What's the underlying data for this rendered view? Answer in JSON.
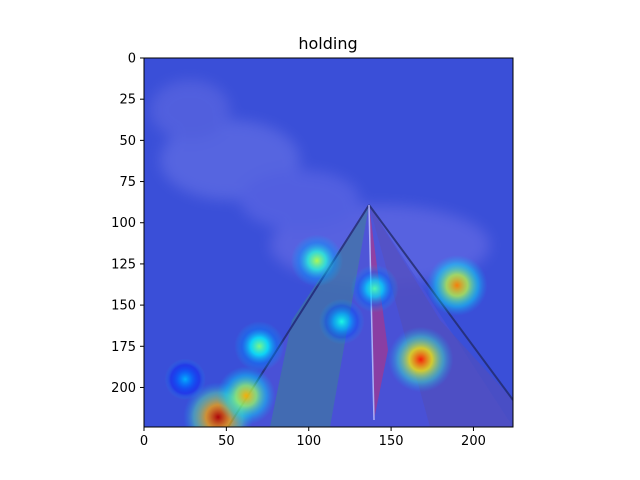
{
  "chart_data": {
    "type": "heatmap",
    "title": "holding",
    "xlabel": "",
    "ylabel": "",
    "xlim": [
      0,
      224
    ],
    "ylim": [
      224,
      0
    ],
    "x_ticks": [
      0,
      50,
      100,
      150,
      200
    ],
    "y_ticks": [
      0,
      25,
      50,
      75,
      100,
      125,
      150,
      175,
      200
    ],
    "colormap": "jet",
    "background_color": "#3a4fd8",
    "hotspots": [
      {
        "x": 45,
        "y": 218,
        "intensity": 0.95
      },
      {
        "x": 62,
        "y": 205,
        "intensity": 0.7
      },
      {
        "x": 168,
        "y": 183,
        "intensity": 0.85
      },
      {
        "x": 190,
        "y": 138,
        "intensity": 0.75
      },
      {
        "x": 105,
        "y": 123,
        "intensity": 0.55
      },
      {
        "x": 70,
        "y": 175,
        "intensity": 0.5
      },
      {
        "x": 140,
        "y": 140,
        "intensity": 0.45
      },
      {
        "x": 120,
        "y": 160,
        "intensity": 0.4
      },
      {
        "x": 25,
        "y": 195,
        "intensity": 0.3
      }
    ],
    "grid": false
  }
}
